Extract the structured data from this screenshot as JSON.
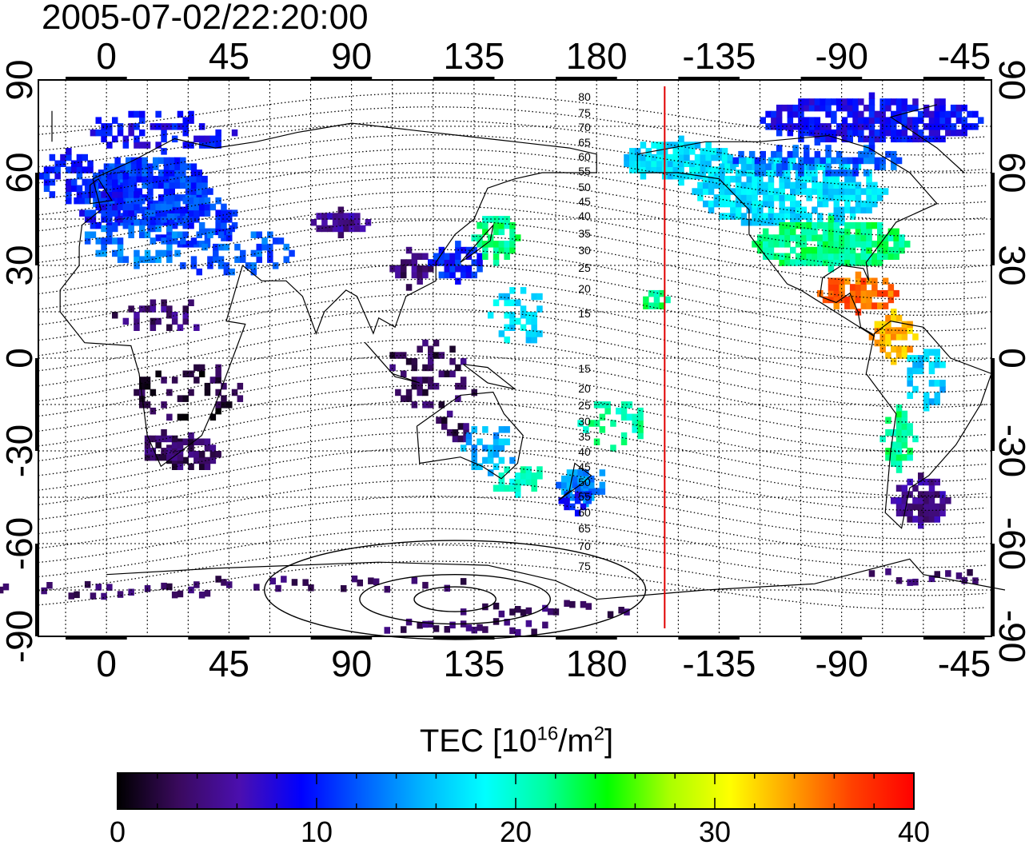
{
  "title": "2005-07-02/22:20:00",
  "map": {
    "lon_ticks": [
      "0",
      "45",
      "90",
      "135",
      "180",
      "-135",
      "-90",
      "-45"
    ],
    "lat_ticks": [
      "90",
      "60",
      "30",
      "0",
      "-30",
      "-60",
      "-90"
    ],
    "lon_range": [
      -25,
      325
    ],
    "lat_range": [
      -90,
      90
    ],
    "terminator_lon": 205,
    "terminator_color": "#e00000",
    "contour_labels_north": [
      "80",
      "75",
      "70",
      "65",
      "60",
      "55",
      "50",
      "45",
      "40",
      "35",
      "30",
      "25",
      "20",
      "15"
    ],
    "contour_labels_south": [
      "15",
      "20",
      "25",
      "30",
      "35",
      "40",
      "45",
      "50",
      "55",
      "60",
      "65",
      "70",
      "75"
    ],
    "grid": "dotted"
  },
  "colorbar": {
    "title_main": "TEC  [10",
    "title_exp1": "16",
    "title_mid": "/m",
    "title_exp2": "2",
    "title_end": "]",
    "ticks": [
      "0",
      "10",
      "20",
      "30",
      "40"
    ],
    "range": [
      0,
      40
    ],
    "colormap": [
      "#000000",
      "#3a0a5e",
      "#4b0fb0",
      "#0000ff",
      "#0060ff",
      "#00b8ff",
      "#00ffff",
      "#00ff9e",
      "#00ff00",
      "#a8ff00",
      "#ffff00",
      "#ffa000",
      "#ff4000",
      "#ff0000"
    ]
  }
}
